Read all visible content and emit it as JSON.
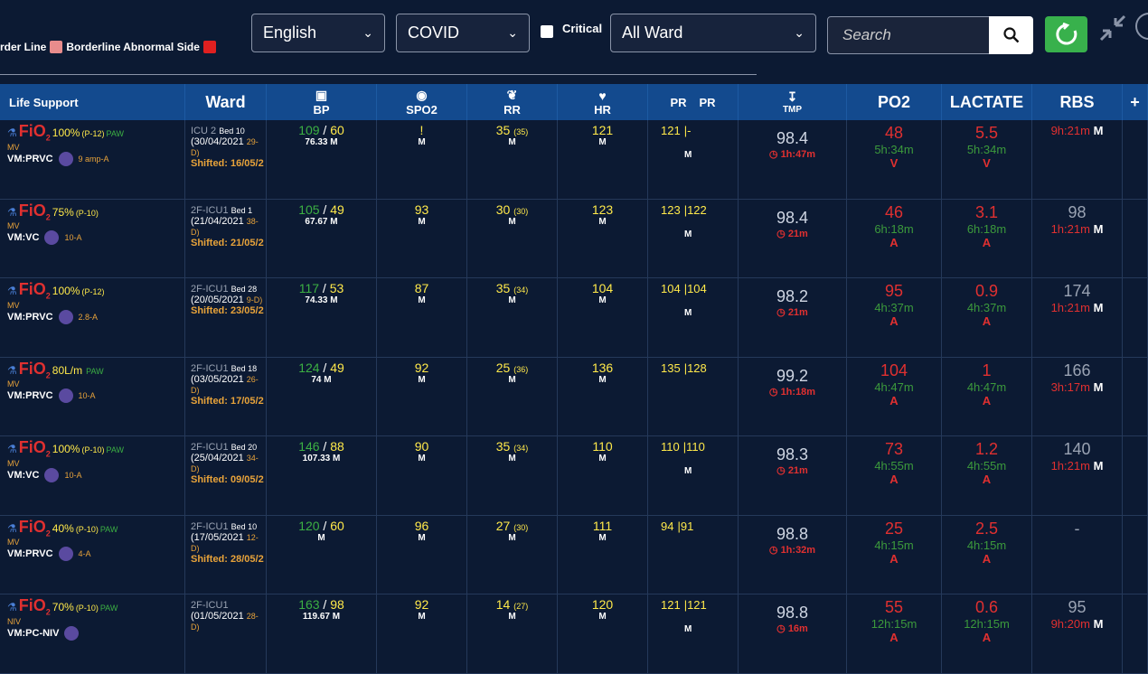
{
  "legend": {
    "border_line": "rder Line",
    "abnormal_side": "Borderline Abnormal Side",
    "colors": {
      "border": "#e88c8c",
      "abnormal": "#e02020"
    }
  },
  "filters": {
    "language": "English",
    "category": "COVID",
    "critical_label": "Critical",
    "ward": "All Ward"
  },
  "search": {
    "placeholder": "Search"
  },
  "icons": [
    "search-icon",
    "refresh-icon",
    "shrink-icon",
    "info-icon"
  ],
  "columns": {
    "life_support": "Life Support",
    "ward": "Ward",
    "bp": "BP",
    "spo2": "SPO2",
    "rr": "RR",
    "hr": "HR",
    "pr1": "PR",
    "pr2": "PR",
    "tmp": "TMP",
    "po2": "PO2",
    "lactate": "LACTATE",
    "rbs": "RBS",
    "plus": "+"
  },
  "rows": [
    {
      "ls": {
        "fio_pct": "100%",
        "fio_mode": "(P-12)",
        "paw": "PAW",
        "mv": "MV",
        "vm": "VM:PRVC",
        "amp": "9 amp-A"
      },
      "ward": {
        "name": "ICU 2",
        "bed": "Bed 10",
        "date": "(30/04/2021",
        "days": "29-D)",
        "shifted": "Shifted: 16/05/2"
      },
      "bp": {
        "sys": "109",
        "dia": "60",
        "mean": "76.33",
        "m": "M"
      },
      "spo2": {
        "v": "!",
        "m": "M"
      },
      "rr": {
        "v": "35",
        "p": "(35)",
        "m": "M"
      },
      "hr": {
        "v": "121",
        "m": "M"
      },
      "pr": {
        "a": "121",
        "b": "|-",
        "m": "M"
      },
      "tmp": {
        "v": "98.4",
        "t": "1h:47m"
      },
      "po2": {
        "v": "48",
        "t": "5h:34m",
        "f": "V"
      },
      "lac": {
        "v": "5.5",
        "t": "5h:34m",
        "f": "V"
      },
      "rbs": {
        "v": "",
        "t": "9h:21m",
        "m": "M"
      }
    },
    {
      "ls": {
        "fio_pct": "75%",
        "fio_mode": "(P-10)",
        "paw": "",
        "mv": "MV",
        "vm": "VM:VC",
        "amp": "10-A"
      },
      "ward": {
        "name": "2F-ICU1",
        "bed": "Bed 1",
        "date": "(21/04/2021",
        "days": "38-D)",
        "shifted": "Shifted: 21/05/2"
      },
      "bp": {
        "sys": "105",
        "dia": "49",
        "mean": "67.67",
        "m": "M"
      },
      "spo2": {
        "v": "93",
        "m": "M"
      },
      "rr": {
        "v": "30",
        "p": "(30)",
        "m": "M"
      },
      "hr": {
        "v": "123",
        "m": "M"
      },
      "pr": {
        "a": "123",
        "b": "|122",
        "m": "M"
      },
      "tmp": {
        "v": "98.4",
        "t": "21m"
      },
      "po2": {
        "v": "46",
        "t": "6h:18m",
        "f": "A"
      },
      "lac": {
        "v": "3.1",
        "t": "6h:18m",
        "f": "A"
      },
      "rbs": {
        "v": "98",
        "t": "1h:21m",
        "m": "M"
      }
    },
    {
      "ls": {
        "fio_pct": "100%",
        "fio_mode": "(P-12)",
        "paw": "",
        "mv": "MV",
        "vm": "VM:PRVC",
        "amp": "2.8-A"
      },
      "ward": {
        "name": "2F-ICU1",
        "bed": "Bed 28",
        "date": "(20/05/2021",
        "days": "9-D)",
        "shifted": "Shifted: 23/05/2"
      },
      "bp": {
        "sys": "117",
        "dia": "53",
        "mean": "74.33",
        "m": "M"
      },
      "spo2": {
        "v": "87",
        "m": "M"
      },
      "rr": {
        "v": "35",
        "p": "(34)",
        "m": "M"
      },
      "hr": {
        "v": "104",
        "m": "M"
      },
      "pr": {
        "a": "104",
        "b": "|104",
        "m": "M"
      },
      "tmp": {
        "v": "98.2",
        "t": "21m"
      },
      "po2": {
        "v": "95",
        "t": "4h:37m",
        "f": "A"
      },
      "lac": {
        "v": "0.9",
        "t": "4h:37m",
        "f": "A"
      },
      "rbs": {
        "v": "174",
        "t": "1h:21m",
        "m": "M"
      }
    },
    {
      "ls": {
        "fio_pct": "80L/m",
        "fio_mode": "",
        "paw": "PAW",
        "mv": "MV",
        "vm": "VM:PRVC",
        "amp": "10-A"
      },
      "ward": {
        "name": "2F-ICU1",
        "bed": "Bed 18",
        "date": "(03/05/2021",
        "days": "26-D)",
        "shifted": "Shifted: 17/05/2"
      },
      "bp": {
        "sys": "124",
        "dia": "49",
        "mean": "74",
        "m": "M"
      },
      "spo2": {
        "v": "92",
        "m": "M"
      },
      "rr": {
        "v": "25",
        "p": "(36)",
        "m": "M"
      },
      "hr": {
        "v": "136",
        "m": "M"
      },
      "pr": {
        "a": "135",
        "b": "|128",
        "m": ""
      },
      "tmp": {
        "v": "99.2",
        "t": "1h:18m"
      },
      "po2": {
        "v": "104",
        "t": "4h:47m",
        "f": "A"
      },
      "lac": {
        "v": "1",
        "t": "4h:47m",
        "f": "A"
      },
      "rbs": {
        "v": "166",
        "t": "3h:17m",
        "m": "M"
      }
    },
    {
      "ls": {
        "fio_pct": "100%",
        "fio_mode": "(P-10)",
        "paw": "PAW",
        "mv": "MV",
        "vm": "VM:VC",
        "amp": "10-A"
      },
      "ward": {
        "name": "2F-ICU1",
        "bed": "Bed 20",
        "date": "(25/04/2021",
        "days": "34-D)",
        "shifted": "Shifted: 09/05/2"
      },
      "bp": {
        "sys": "146",
        "dia": "88",
        "mean": "107.33",
        "m": "M"
      },
      "spo2": {
        "v": "90",
        "m": "M"
      },
      "rr": {
        "v": "35",
        "p": "(34)",
        "m": "M"
      },
      "hr": {
        "v": "110",
        "m": "M"
      },
      "pr": {
        "a": "110",
        "b": "|110",
        "m": "M"
      },
      "tmp": {
        "v": "98.3",
        "t": "21m"
      },
      "po2": {
        "v": "73",
        "t": "4h:55m",
        "f": "A"
      },
      "lac": {
        "v": "1.2",
        "t": "4h:55m",
        "f": "A"
      },
      "rbs": {
        "v": "140",
        "t": "1h:21m",
        "m": "M"
      }
    },
    {
      "ls": {
        "fio_pct": "40%",
        "fio_mode": "(P-10)",
        "paw": "PAW",
        "mv": "MV",
        "vm": "VM:PRVC",
        "amp": "4-A"
      },
      "ward": {
        "name": "2F-ICU1",
        "bed": "Bed 10",
        "date": "(17/05/2021",
        "days": "12-D)",
        "shifted": "Shifted: 28/05/2"
      },
      "bp": {
        "sys": "120",
        "dia": "60",
        "mean": "",
        "m": "M"
      },
      "spo2": {
        "v": "96",
        "m": "M"
      },
      "rr": {
        "v": "27",
        "p": "(30)",
        "m": "M"
      },
      "hr": {
        "v": "111",
        "m": "M"
      },
      "pr": {
        "a": "94",
        "b": "|91",
        "m": ""
      },
      "tmp": {
        "v": "98.8",
        "t": "1h:32m"
      },
      "po2": {
        "v": "25",
        "t": "4h:15m",
        "f": "A"
      },
      "lac": {
        "v": "2.5",
        "t": "4h:15m",
        "f": "A"
      },
      "rbs": {
        "v": "-",
        "t": "",
        "m": ""
      }
    },
    {
      "ls": {
        "fio_pct": "70%",
        "fio_mode": "(P-10)",
        "paw": "PAW",
        "mv": "NIV",
        "vm": "VM:PC-NIV",
        "amp": ""
      },
      "ward": {
        "name": "2F-ICU1",
        "bed": "",
        "date": "(01/05/2021",
        "days": "28-D)",
        "shifted": ""
      },
      "bp": {
        "sys": "163",
        "dia": "98",
        "mean": "119.67",
        "m": "M"
      },
      "spo2": {
        "v": "92",
        "m": "M"
      },
      "rr": {
        "v": "14",
        "p": "(27)",
        "m": "M"
      },
      "hr": {
        "v": "120",
        "m": "M"
      },
      "pr": {
        "a": "121",
        "b": "|121",
        "m": "M"
      },
      "tmp": {
        "v": "98.8",
        "t": "16m"
      },
      "po2": {
        "v": "55",
        "t": "12h:15m",
        "f": "A"
      },
      "lac": {
        "v": "0.6",
        "t": "12h:15m",
        "f": "A"
      },
      "rbs": {
        "v": "95",
        "t": "9h:20m",
        "m": "M"
      }
    }
  ]
}
